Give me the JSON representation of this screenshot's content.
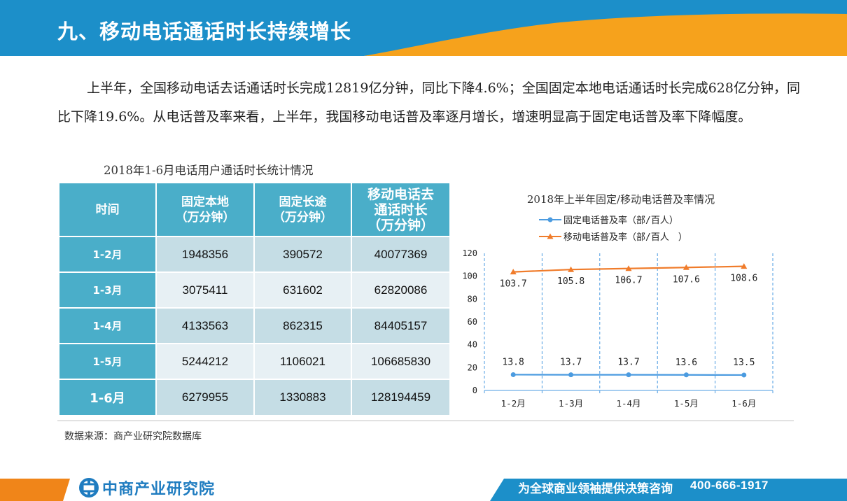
{
  "colors": {
    "header_blue": "#1c8fc9",
    "accent_orange": "#f6a21c",
    "table_teal": "#4aaec9",
    "series_fixed": "#4b9be0",
    "series_mobile": "#f07c2b"
  },
  "header": {
    "title": "九、移动电话通话时长持续增长"
  },
  "intro": {
    "text": "上半年，全国移动电话去话通话时长完成12819亿分钟，同比下降4.6%；全国固定本地电话通话时长完成628亿分钟，同比下降19.6%。从电话普及率来看，上半年，我国移动电话普及率逐月增长，增速明显高于固定电话普及率下降幅度。"
  },
  "table": {
    "caption": "2018年1-6月电话用户通话时长统计情况",
    "headers": [
      {
        "line1": "时间",
        "line2": ""
      },
      {
        "line1": "固定本地",
        "line2": "（万分钟）"
      },
      {
        "line1": "固定长途",
        "line2": "（万分钟）"
      },
      {
        "line1": "移动电话去",
        "line2": "通话时长",
        "line3": "（万分钟）"
      }
    ],
    "rows": [
      {
        "period": "1-2月",
        "fixed_local": "1948356",
        "fixed_long": "390572",
        "mobile": "40077369"
      },
      {
        "period": "1-3月",
        "fixed_local": "3075411",
        "fixed_long": "631602",
        "mobile": "62820086"
      },
      {
        "period": "1-4月",
        "fixed_local": "4133563",
        "fixed_long": "862315",
        "mobile": "84405157"
      },
      {
        "period": "1-5月",
        "fixed_local": "5244212",
        "fixed_long": "1106021",
        "mobile": "106685830"
      },
      {
        "period": "1-6月",
        "fixed_local": "6279955",
        "fixed_long": "1330883",
        "mobile": "128194459"
      }
    ]
  },
  "chart_data": {
    "type": "line",
    "title": "2018年上半年固定/移动电话普及率情况",
    "categories": [
      "1-2月",
      "1-3月",
      "1-4月",
      "1-5月",
      "1-6月"
    ],
    "series": [
      {
        "name": "固定电话普及率（部/百人）",
        "values": [
          13.8,
          13.7,
          13.7,
          13.6,
          13.5
        ],
        "labels": [
          "13.8",
          "13.7",
          "13.7",
          "13.6",
          "13.5"
        ],
        "marker": "circle"
      },
      {
        "name": "移动电话普及率（部/百人　）",
        "values": [
          103.7,
          105.8,
          106.7,
          107.6,
          108.6
        ],
        "labels": [
          "103.7",
          "105.8",
          "106.7",
          "107.6",
          "108.6"
        ],
        "marker": "triangle"
      }
    ],
    "yticks": [
      "0",
      "20",
      "40",
      "60",
      "80",
      "100",
      "120"
    ],
    "ylim": [
      0,
      120
    ],
    "legend_position": "top",
    "xlabel": "",
    "ylabel": ""
  },
  "source": {
    "text": "数据来源：商产业研究院数据库"
  },
  "footer": {
    "brand": "中商产业研究院",
    "slogan": "为全球商业领袖提供决策咨询",
    "phone": "400-666-1917"
  }
}
